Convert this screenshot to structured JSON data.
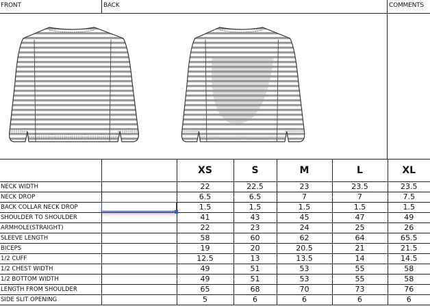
{
  "header": {
    "front": "FRONT",
    "back": "BACK",
    "comments": "COMMENTS"
  },
  "sketches": {
    "front": "front-shirt-sketch",
    "back": "back-shirt-sketch",
    "stripe_color": "#9a9a9a"
  },
  "table": {
    "sizes": [
      "XS",
      "S",
      "M",
      "L",
      "XL"
    ],
    "rows": [
      {
        "label": "NECK WIDTH",
        "values": [
          "22",
          "22.5",
          "23",
          "23.5",
          "23.5"
        ]
      },
      {
        "label": "NECK DROP",
        "values": [
          "6.5",
          "6.5",
          "7",
          "7",
          "7.5"
        ]
      },
      {
        "label": "BACK COLLAR NECK DROP",
        "values": [
          "1.5",
          "1.5",
          "1.5",
          "1.5",
          "1.5"
        ]
      },
      {
        "label": "SHOULDER TO SHOULDER",
        "values": [
          "41",
          "43",
          "45",
          "47",
          "49"
        ]
      },
      {
        "label": "ARMHOLE(STRAIGHT)",
        "values": [
          "22",
          "23",
          "24",
          "25",
          "26"
        ]
      },
      {
        "label": "SLEEVE LENGTH",
        "values": [
          "58",
          "60",
          "62",
          "64",
          "65.5"
        ]
      },
      {
        "label": "BICEPS",
        "values": [
          "19",
          "20",
          "20.5",
          "21",
          "21.5"
        ]
      },
      {
        "label": "1/2 CUFF",
        "values": [
          "12.5",
          "13",
          "13.5",
          "14",
          "14.5"
        ]
      },
      {
        "label": "1/2 CHEST WIDTH",
        "values": [
          "49",
          "51",
          "53",
          "55",
          "58"
        ]
      },
      {
        "label": "1/2 BOTTOM WIDTH",
        "values": [
          "49",
          "51",
          "53",
          "55",
          "58"
        ]
      },
      {
        "label": "LENGTH FROM SHOULDER",
        "values": [
          "65",
          "68",
          "70",
          "73",
          "76"
        ]
      },
      {
        "label": "SIDE SLIT OPENING",
        "values": [
          "5",
          "6",
          "6",
          "6",
          "6"
        ]
      }
    ]
  }
}
